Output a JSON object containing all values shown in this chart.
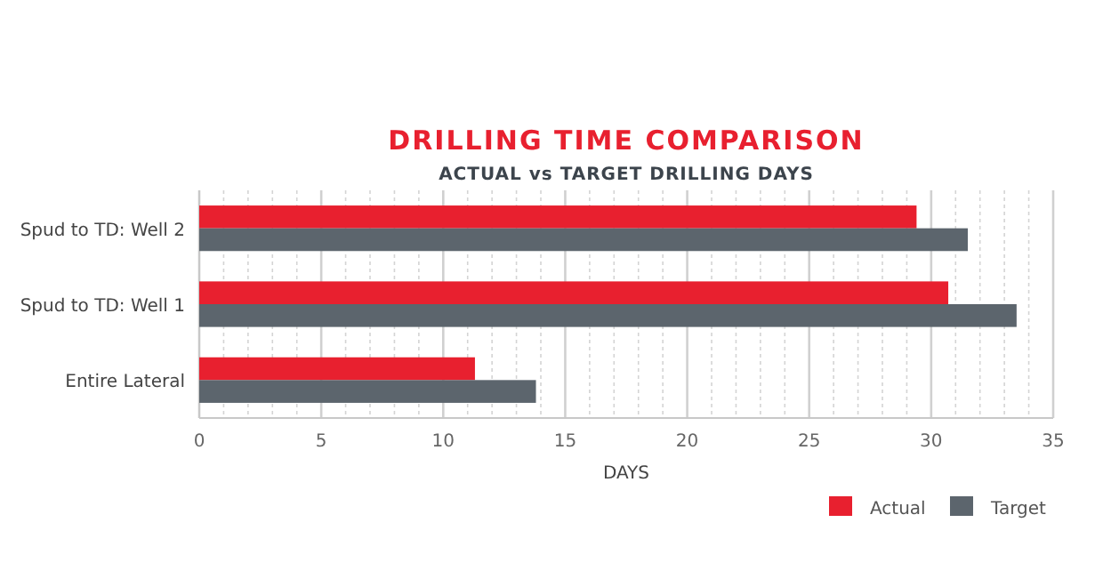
{
  "chart_data": {
    "type": "bar",
    "orientation": "horizontal",
    "title": "DRILLING TIME COMPARISON",
    "subtitle": "ACTUAL vs TARGET DRILLING DAYS",
    "xlabel": "DAYS",
    "categories": [
      "Spud to TD: Well 2",
      "Spud to TD: Well 1",
      "Entire Lateral"
    ],
    "series": [
      {
        "name": "Actual",
        "color": "#e8202f",
        "values": [
          29.4,
          30.7,
          11.3
        ]
      },
      {
        "name": "Target",
        "color": "#5c656d",
        "values": [
          31.5,
          33.5,
          13.8
        ]
      }
    ],
    "xlim": [
      0,
      35
    ],
    "xticks": [
      0,
      {
        "value": 1,
        "label": null
      },
      {
        "value": 2,
        "label": null
      },
      {
        "value": 3,
        "label": null
      },
      {
        "value": 4,
        "label": null
      },
      5,
      {
        "value": 6,
        "label": null
      },
      {
        "value": 7,
        "label": null
      },
      {
        "value": 8,
        "label": null
      },
      {
        "value": 9,
        "label": null
      },
      10,
      {
        "value": 11,
        "label": null
      },
      {
        "value": 12,
        "label": null
      },
      {
        "value": 13,
        "label": null
      },
      {
        "value": 14,
        "label": null
      },
      15,
      {
        "value": 16,
        "label": null
      },
      {
        "value": 17,
        "label": null
      },
      {
        "value": 18,
        "label": null
      },
      {
        "value": 19,
        "label": null
      },
      20,
      {
        "value": 21,
        "label": null
      },
      {
        "value": 22,
        "label": null
      },
      {
        "value": 23,
        "label": null
      },
      {
        "value": 24,
        "label": null
      },
      25,
      {
        "value": 26,
        "label": null
      },
      {
        "value": 27,
        "label": null
      },
      {
        "value": 28,
        "label": null
      },
      {
        "value": 29,
        "label": null
      },
      30,
      {
        "value": 31,
        "label": null
      },
      {
        "value": 32,
        "label": null
      },
      {
        "value": 33,
        "label": null
      },
      {
        "value": 34,
        "label": null
      },
      35
    ],
    "grid": "x",
    "legend": "bottom right"
  }
}
